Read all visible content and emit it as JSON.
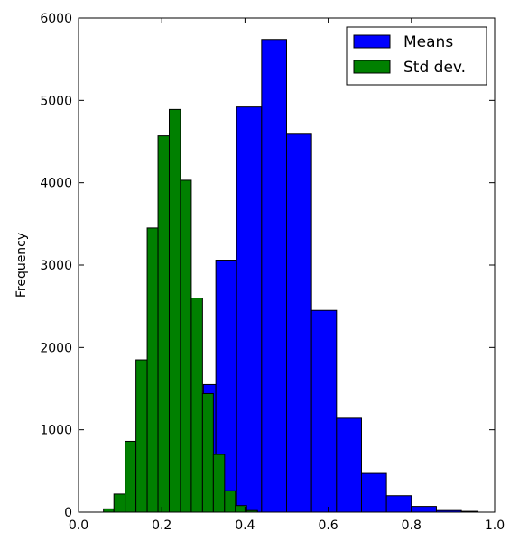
{
  "chart_data": {
    "type": "bar",
    "title": "",
    "xlabel": "",
    "ylabel": "Frequency",
    "xlim": [
      0.0,
      1.0
    ],
    "ylim": [
      0,
      6000
    ],
    "grid": false,
    "legend_position": "top-right",
    "x_ticks": [
      "0.0",
      "0.2",
      "0.4",
      "0.6",
      "0.8",
      "1.0"
    ],
    "y_ticks": [
      "0",
      "1000",
      "2000",
      "3000",
      "4000",
      "5000",
      "6000"
    ],
    "series": [
      {
        "name": "Means",
        "color": "#0000ff",
        "bins": [
          {
            "x0": 0.3,
            "x1": 0.33,
            "value": 1550
          },
          {
            "x0": 0.33,
            "x1": 0.38,
            "value": 3060
          },
          {
            "x0": 0.38,
            "x1": 0.44,
            "value": 4920
          },
          {
            "x0": 0.44,
            "x1": 0.5,
            "value": 5740
          },
          {
            "x0": 0.5,
            "x1": 0.56,
            "value": 4590
          },
          {
            "x0": 0.56,
            "x1": 0.62,
            "value": 2450
          },
          {
            "x0": 0.62,
            "x1": 0.68,
            "value": 1140
          },
          {
            "x0": 0.68,
            "x1": 0.74,
            "value": 470
          },
          {
            "x0": 0.74,
            "x1": 0.8,
            "value": 200
          },
          {
            "x0": 0.8,
            "x1": 0.86,
            "value": 70
          },
          {
            "x0": 0.86,
            "x1": 0.92,
            "value": 20
          },
          {
            "x0": 0.92,
            "x1": 0.96,
            "value": 10
          }
        ]
      },
      {
        "name": "Std dev.",
        "color": "#008000",
        "bins": [
          {
            "x0": 0.06,
            "x1": 0.085,
            "value": 40
          },
          {
            "x0": 0.085,
            "x1": 0.112,
            "value": 220
          },
          {
            "x0": 0.112,
            "x1": 0.138,
            "value": 860
          },
          {
            "x0": 0.138,
            "x1": 0.165,
            "value": 1850
          },
          {
            "x0": 0.165,
            "x1": 0.191,
            "value": 3450
          },
          {
            "x0": 0.191,
            "x1": 0.218,
            "value": 4570
          },
          {
            "x0": 0.218,
            "x1": 0.245,
            "value": 4890
          },
          {
            "x0": 0.245,
            "x1": 0.271,
            "value": 4030
          },
          {
            "x0": 0.271,
            "x1": 0.298,
            "value": 2600
          },
          {
            "x0": 0.298,
            "x1": 0.324,
            "value": 1440
          },
          {
            "x0": 0.324,
            "x1": 0.351,
            "value": 700
          },
          {
            "x0": 0.351,
            "x1": 0.377,
            "value": 260
          },
          {
            "x0": 0.377,
            "x1": 0.404,
            "value": 80
          },
          {
            "x0": 0.404,
            "x1": 0.43,
            "value": 20
          }
        ]
      }
    ]
  }
}
